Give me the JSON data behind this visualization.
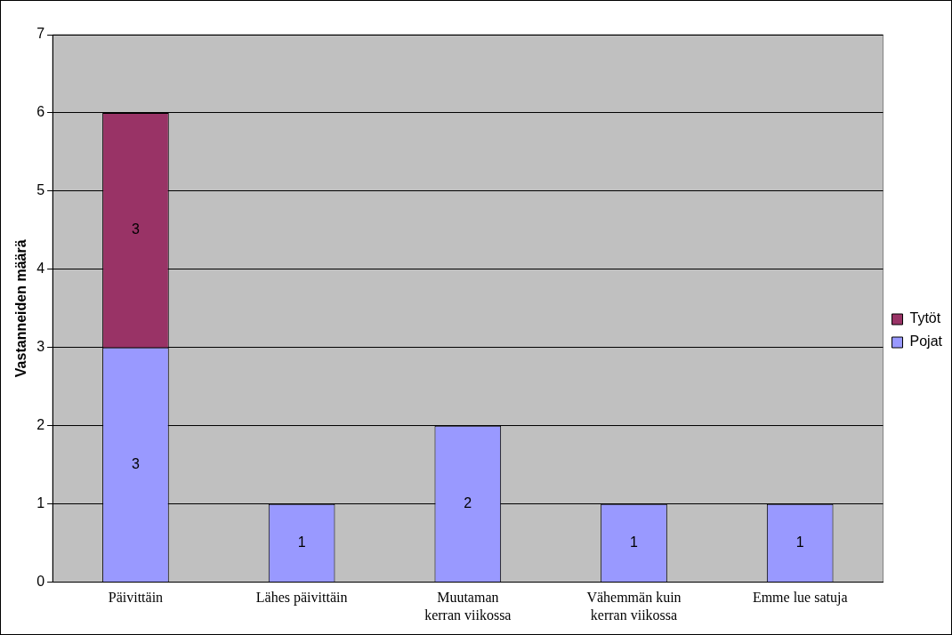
{
  "chart_data": {
    "type": "bar",
    "stacked": true,
    "ylabel": "Vastanneiden määrä",
    "categories": [
      "Päivittäin",
      "Lähes päivittäin",
      "Muutaman kerran viikossa",
      "Vähemmän kuin kerran viikossa",
      "Emme lue satuja"
    ],
    "series": [
      {
        "name": "Pojat",
        "color": "#9999ff",
        "values": [
          3,
          1,
          2,
          1,
          1
        ]
      },
      {
        "name": "Tytöt",
        "color": "#993366",
        "values": [
          3,
          null,
          null,
          null,
          null
        ]
      }
    ],
    "ylim": [
      0,
      7
    ],
    "yticks": [
      0,
      1,
      2,
      3,
      4,
      5,
      6,
      7
    ],
    "grid": "y",
    "legend": "right",
    "data_labels": true
  }
}
